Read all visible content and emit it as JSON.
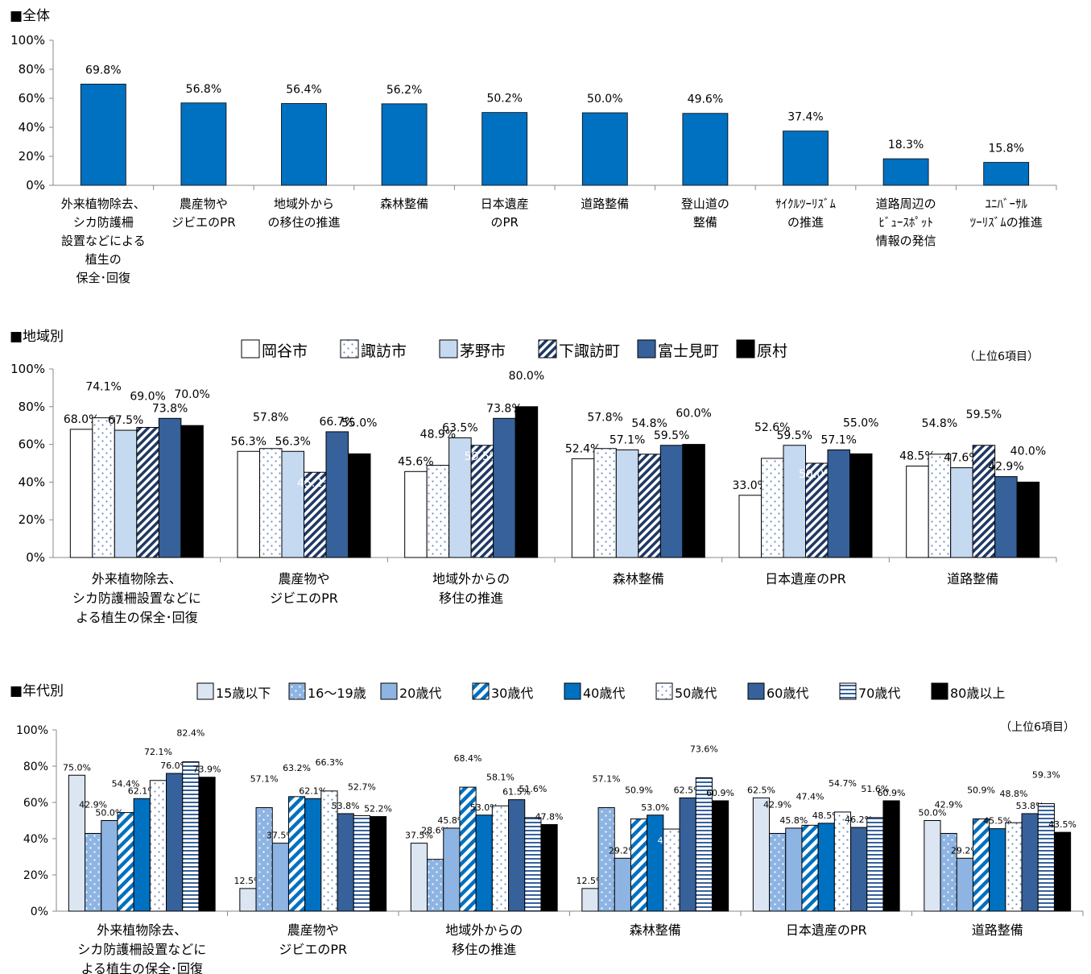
{
  "colors": {
    "overall_bar": "#0070C0",
    "okaya": "#ffffff",
    "suwa": "#ffffff",
    "chino": "#C5D9F1",
    "shimosuwa": "#9BB6DA",
    "fujimi": "#36619A",
    "hara": "#000000",
    "age_15": "#DCE6F2",
    "age_16": "#8DB4E2",
    "age_20": "#8DB4E2",
    "age_30": "#0070C0",
    "age_40": "#0070C0",
    "age_50": "#ffffff",
    "age_60": "#36619A",
    "age_70": "#ffffff",
    "age_80": "#000000"
  },
  "chart_data": [
    {
      "type": "bar",
      "title": "■全体",
      "categories": [
        [
          "外来植物除去、",
          "シカ防護柵",
          "設置などによる",
          "植生の",
          "保全･回復"
        ],
        [
          "農産物や",
          "ジビエのPR"
        ],
        [
          "地域外から",
          "の移住の推進"
        ],
        [
          "森林整備"
        ],
        [
          "日本遺産",
          "のPR"
        ],
        [
          "道路整備"
        ],
        [
          "登山道の",
          "整備"
        ],
        [
          "ｻｲｸﾙﾂｰﾘｽﾞﾑ",
          "の推進"
        ],
        [
          "道路周辺の",
          "ﾋﾞｭｰｽﾎﾟｯﾄ",
          "情報の発信"
        ],
        [
          "ﾕﾆﾊﾞｰｻﾙ",
          "ﾂｰﾘｽﾞﾑの推進"
        ]
      ],
      "values": [
        69.8,
        56.8,
        56.4,
        56.2,
        50.2,
        50.0,
        49.6,
        37.4,
        18.3,
        15.8
      ],
      "labels": [
        "69.8%",
        "56.8%",
        "56.4%",
        "56.2%",
        "50.2%",
        "50.0%",
        "49.6%",
        "37.4%",
        "18.3%",
        "15.8%"
      ],
      "yticks": [
        "100%",
        "80%",
        "60%",
        "40%",
        "20%",
        "0%"
      ],
      "ylim": [
        0,
        100
      ]
    },
    {
      "type": "bar",
      "title": "■地域別",
      "note": "（上位6項目）",
      "categories": [
        [
          "外来植物除去、",
          "シカ防護柵設置などに",
          "よる植生の保全･回復"
        ],
        [
          "農産物や",
          "ジビエのPR"
        ],
        [
          "地域外からの",
          "移住の推進"
        ],
        [
          "森林整備"
        ],
        [
          "日本遺産のPR"
        ],
        [
          "道路整備"
        ]
      ],
      "yticks": [
        "100%",
        "80%",
        "60%",
        "40%",
        "20%",
        "0%"
      ],
      "ylim": [
        0,
        100
      ],
      "series": [
        {
          "name": "岡谷市",
          "values": [
            68.0,
            56.3,
            45.6,
            52.4,
            33.0,
            48.5
          ],
          "labels": [
            "68.0%",
            "56.3%",
            "45.6%",
            "52.4%",
            "33.0%",
            "48.5%"
          ]
        },
        {
          "name": "諏訪市",
          "values": [
            74.1,
            57.8,
            48.9,
            57.8,
            52.6,
            54.8
          ],
          "labels": [
            "74.1%",
            "57.8%",
            "48.9%",
            "57.8%",
            "52.6%",
            "54.8%"
          ]
        },
        {
          "name": "茅野市",
          "values": [
            67.5,
            56.3,
            63.5,
            57.1,
            59.5,
            47.6
          ],
          "labels": [
            "67.5%",
            "56.3%",
            "63.5%",
            "57.1%",
            "59.5%",
            "47.6%"
          ]
        },
        {
          "name": "下諏訪町",
          "values": [
            69.0,
            45.2,
            59.5,
            54.8,
            50.0,
            59.5
          ],
          "labels": [
            "69.0%",
            "45.2%",
            "59.5%",
            "54.8%",
            "50.0%",
            "59.5%"
          ]
        },
        {
          "name": "富士見町",
          "values": [
            73.8,
            66.7,
            73.8,
            59.5,
            57.1,
            42.9
          ],
          "labels": [
            "73.8%",
            "66.7%",
            "73.8%",
            "59.5%",
            "57.1%",
            "42.9%"
          ]
        },
        {
          "name": "原村",
          "values": [
            70.0,
            55.0,
            80.0,
            60.0,
            55.0,
            40.0
          ],
          "labels": [
            "70.0%",
            "55.0%",
            "80.0%",
            "60.0%",
            "55.0%",
            "40.0%"
          ]
        }
      ]
    },
    {
      "type": "bar",
      "title": "■年代別",
      "note": "（上位6項目）",
      "categories": [
        [
          "外来植物除去、",
          "シカ防護柵設置などに",
          "よる植生の保全･回復"
        ],
        [
          "農産物や",
          "ジビエのPR"
        ],
        [
          "地域外からの",
          "移住の推進"
        ],
        [
          "森林整備"
        ],
        [
          "日本遺産のPR"
        ],
        [
          "道路整備"
        ]
      ],
      "yticks": [
        "100%",
        "80%",
        "60%",
        "40%",
        "20%",
        "0%"
      ],
      "ylim": [
        0,
        100
      ],
      "series": [
        {
          "name": "15歳以下",
          "values": [
            75.0,
            12.5,
            37.5,
            12.5,
            62.5,
            50.0
          ],
          "labels": [
            "75.0%",
            "12.5%",
            "37.5%",
            "12.5%",
            "62.5%",
            "50.0%"
          ]
        },
        {
          "name": "16～19歳",
          "values": [
            42.9,
            57.1,
            28.6,
            57.1,
            42.9,
            42.9
          ],
          "labels": [
            "42.9%",
            "57.1%",
            "28.6%",
            "57.1%",
            "42.9%",
            "42.9%"
          ]
        },
        {
          "name": "20歳代",
          "values": [
            50.0,
            37.5,
            45.8,
            29.2,
            45.8,
            29.2
          ],
          "labels": [
            "50.0%",
            "37.5%",
            "45.8%",
            "29.2%",
            "45.8%",
            "29.2%"
          ]
        },
        {
          "name": "30歳代",
          "values": [
            54.4,
            63.2,
            68.4,
            50.9,
            47.4,
            50.9
          ],
          "labels": [
            "54.4%",
            "63.2%",
            "68.4%",
            "50.9%",
            "47.4%",
            "50.9%"
          ]
        },
        {
          "name": "40歳代",
          "values": [
            62.1,
            62.1,
            53.0,
            53.0,
            48.5,
            45.5
          ],
          "labels": [
            "62.1%",
            "62.1%",
            "53.0%",
            "53.0%",
            "48.5%",
            "45.5%"
          ]
        },
        {
          "name": "50歳代",
          "values": [
            72.1,
            66.3,
            58.1,
            45.3,
            54.7,
            48.8
          ],
          "labels": [
            "72.1%",
            "66.3%",
            "58.1%",
            "45.3%",
            "54.7%",
            "48.8%"
          ]
        },
        {
          "name": "60歳代",
          "values": [
            76.0,
            53.8,
            61.5,
            62.5,
            46.2,
            53.8
          ],
          "labels": [
            "76.0%",
            "53.8%",
            "61.5%",
            "62.5%",
            "46.2%",
            "53.8%"
          ]
        },
        {
          "name": "70歳代",
          "values": [
            82.4,
            52.7,
            51.6,
            73.6,
            51.6,
            59.3
          ],
          "labels": [
            "82.4%",
            "52.7%",
            "51.6%",
            "73.6%",
            "51.6%",
            "59.3%"
          ]
        },
        {
          "name": "80歳以上",
          "values": [
            73.9,
            52.2,
            47.8,
            60.9,
            60.9,
            43.5
          ],
          "labels": [
            "73.9%",
            "52.2%",
            "47.8%",
            "60.9%",
            "60.9%",
            "43.5%"
          ]
        }
      ]
    }
  ]
}
